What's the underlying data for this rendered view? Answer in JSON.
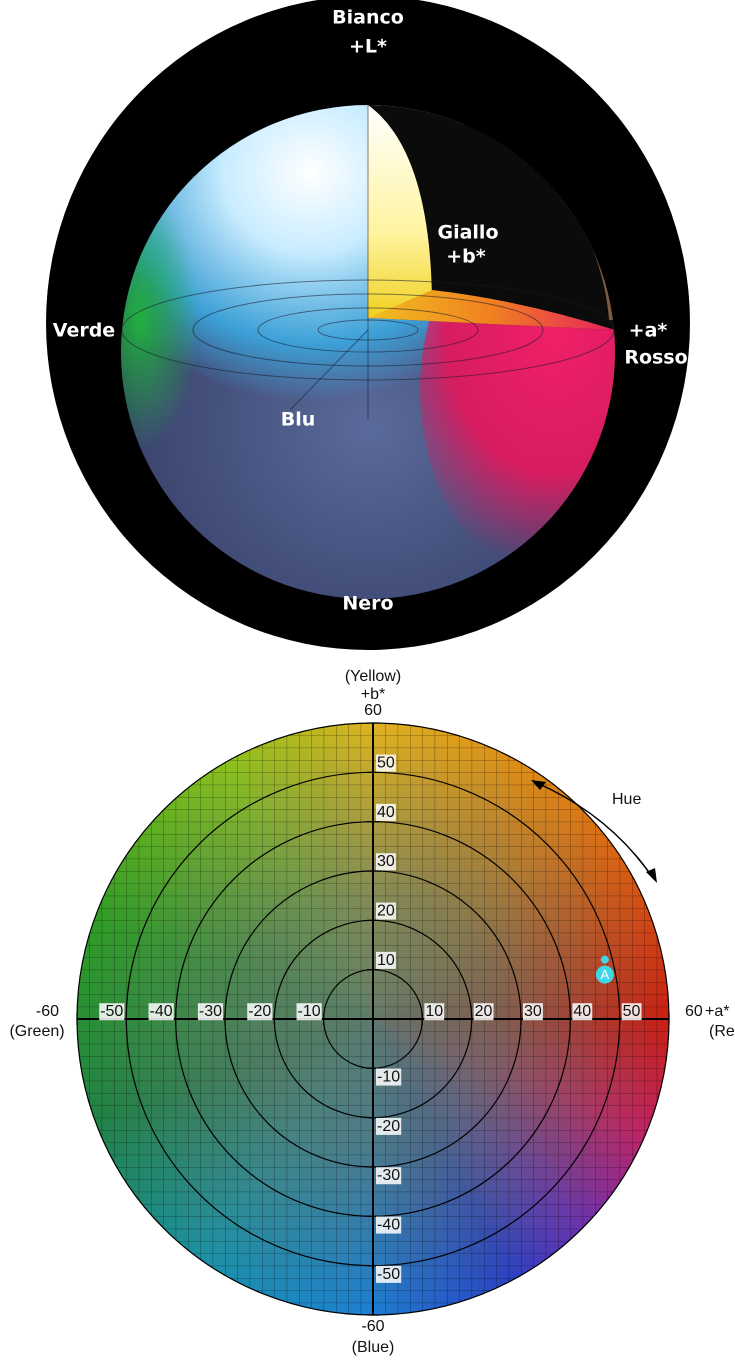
{
  "sphere": {
    "top_label": "Bianco",
    "top_axis": "+L*",
    "yellow_label": "Giallo",
    "yellow_axis": "+b*",
    "left_label": "Verde",
    "right_axis": "+a*",
    "right_label": "Rosso",
    "blue_label": "Blu",
    "bottom_label": "Nero"
  },
  "chart_data": {
    "type": "scatter",
    "x_label": "+a*",
    "y_label": "+b*",
    "x_pos_name": "(Red)",
    "x_neg_name": "(Green)",
    "y_pos_name": "(Yellow)",
    "y_neg_name": "(Blue)",
    "annotation": "Hue",
    "xlim": [
      -60,
      60
    ],
    "ylim": [
      -60,
      60
    ],
    "xticks": [
      -60,
      -50,
      -40,
      -30,
      -20,
      -10,
      10,
      20,
      30,
      40,
      50,
      60
    ],
    "yticks": [
      -60,
      -50,
      -40,
      -30,
      -20,
      -10,
      10,
      20,
      30,
      40,
      50,
      60
    ],
    "rings": [
      10,
      20,
      30,
      40,
      50
    ],
    "x": [
      47
    ],
    "values": [
      9
    ],
    "point_labels": [
      "A"
    ],
    "color": "#3fd6e6"
  }
}
